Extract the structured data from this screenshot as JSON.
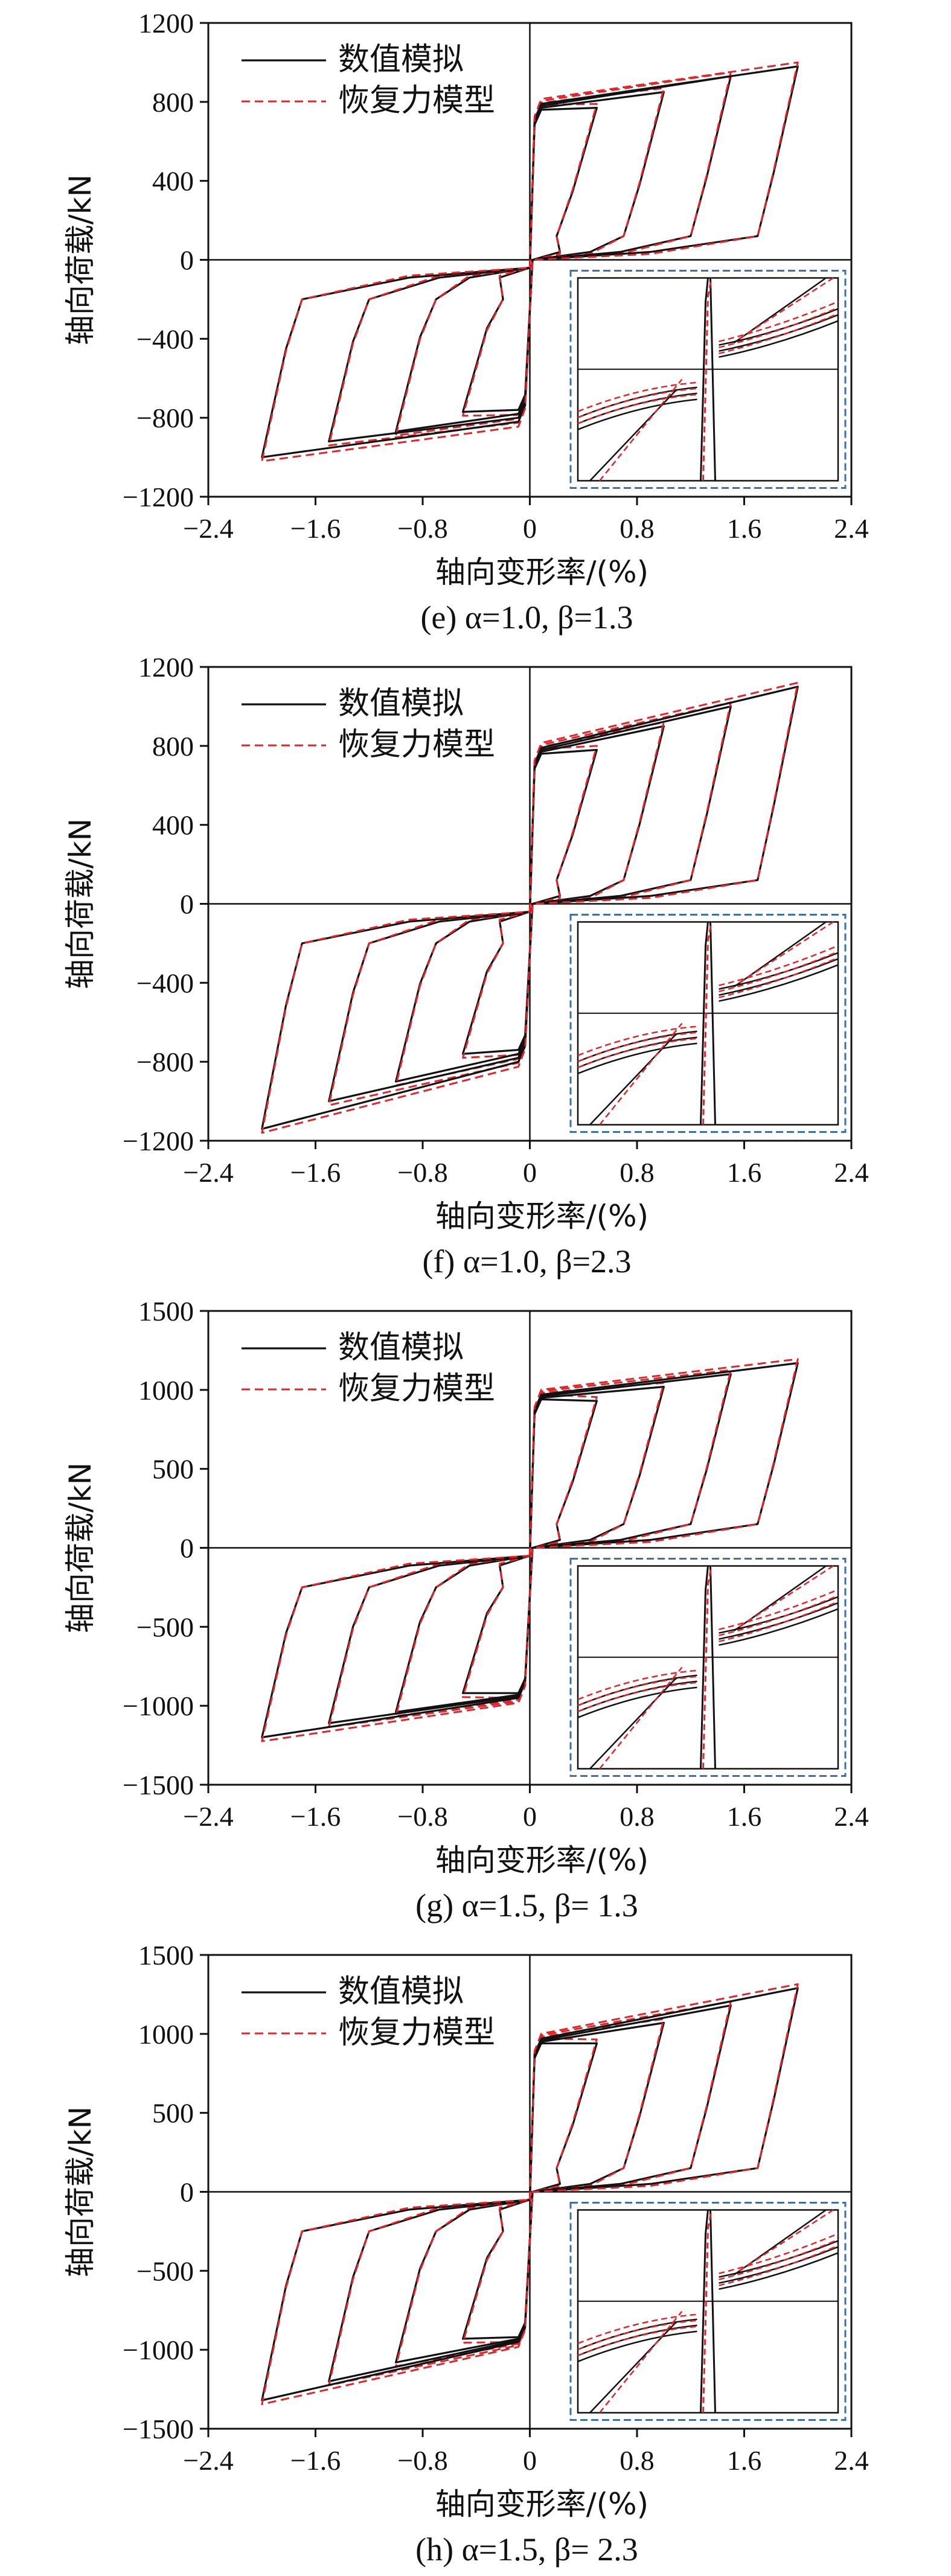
{
  "figure": {
    "panels": [
      {
        "caption": "(e) α=1.0, β=1.3",
        "legend": [
          "数值模拟",
          "恢复力模型"
        ],
        "colors": {
          "numerical": "#111111",
          "model": "#e0252b",
          "inset_border": "#3d6fa8"
        },
        "inset": true
      },
      {
        "caption": "(f) α=1.0, β=2.3",
        "legend": [
          "数值模拟",
          "恢复力模型"
        ],
        "colors": {
          "numerical": "#111111",
          "model": "#e0252b",
          "inset_border": "#3d6fa8"
        },
        "inset": true
      },
      {
        "caption": "(g) α=1.5, β= 1.3",
        "legend": [
          "数值模拟",
          "恢复力模型"
        ],
        "colors": {
          "numerical": "#111111",
          "model": "#e0252b",
          "inset_border": "#3d6fa8"
        },
        "inset": true
      },
      {
        "caption": "(h) α=1.5, β= 2.3",
        "legend": [
          "数值模拟",
          "恢复力模型"
        ],
        "colors": {
          "numerical": "#111111",
          "model": "#e0252b",
          "inset_border": "#3d6fa8"
        },
        "inset": true
      }
    ]
  },
  "chart_data": [
    {
      "type": "line",
      "xlabel": "轴向变形率/(%)",
      "ylabel": "轴向荷载/kN",
      "xlim": [
        -2.4,
        2.4
      ],
      "ylim": [
        -1200,
        1200
      ],
      "xticks": [
        "-2.4",
        "-1.6",
        "-0.8",
        "0",
        "0.8",
        "1.6",
        "2.4"
      ],
      "yticks": [
        "1200",
        "800",
        "400",
        "0",
        "-400",
        "-800",
        "-1200"
      ],
      "loops": [
        {
          "amp": 0.5,
          "top": 760,
          "bot": -760,
          "topEnd": 770,
          "botEnd": -770
        },
        {
          "amp": 1.0,
          "top": 770,
          "bot": -780,
          "topEnd": 850,
          "botEnd": -870
        },
        {
          "amp": 1.5,
          "top": 780,
          "bot": -800,
          "topEnd": 930,
          "botEnd": -920
        },
        {
          "amp": 2.0,
          "top": 790,
          "bot": -820,
          "topEnd": 980,
          "botEnd": -1000
        }
      ],
      "series": [
        {
          "name": "数值模拟",
          "style": "solid"
        },
        {
          "name": "恢复力模型",
          "style": "dashed"
        }
      ]
    },
    {
      "type": "line",
      "xlabel": "轴向变形率/(%)",
      "ylabel": "轴向荷载/kN",
      "xlim": [
        -2.4,
        2.4
      ],
      "ylim": [
        -1200,
        1200
      ],
      "xticks": [
        "-2.4",
        "-1.6",
        "-0.8",
        "0",
        "0.8",
        "1.6",
        "2.4"
      ],
      "yticks": [
        "1200",
        "800",
        "400",
        "0",
        "-400",
        "-800",
        "-1200"
      ],
      "loops": [
        {
          "amp": 0.5,
          "top": 760,
          "bot": -740,
          "topEnd": 780,
          "botEnd": -760
        },
        {
          "amp": 1.0,
          "top": 770,
          "bot": -760,
          "topEnd": 900,
          "botEnd": -900
        },
        {
          "amp": 1.5,
          "top": 780,
          "bot": -780,
          "topEnd": 1000,
          "botEnd": -1000
        },
        {
          "amp": 2.0,
          "top": 790,
          "bot": -800,
          "topEnd": 1100,
          "botEnd": -1140
        }
      ],
      "series": [
        {
          "name": "数值模拟",
          "style": "solid"
        },
        {
          "name": "恢复力模型",
          "style": "dashed"
        }
      ]
    },
    {
      "type": "line",
      "xlabel": "轴向变形率/(%)",
      "ylabel": "轴向荷载/kN",
      "xlim": [
        -2.4,
        2.4
      ],
      "ylim": [
        -1500,
        1500
      ],
      "xticks": [
        "-2.4",
        "-1.6",
        "-0.8",
        "0",
        "0.8",
        "1.6",
        "2.4"
      ],
      "yticks": [
        "1500",
        "1000",
        "500",
        "0",
        "-500",
        "-1000",
        "-1500"
      ],
      "loops": [
        {
          "amp": 0.5,
          "top": 940,
          "bot": -920,
          "topEnd": 930,
          "botEnd": -920
        },
        {
          "amp": 1.0,
          "top": 950,
          "bot": -930,
          "topEnd": 1020,
          "botEnd": -1040
        },
        {
          "amp": 1.5,
          "top": 960,
          "bot": -940,
          "topEnd": 1100,
          "botEnd": -1110
        },
        {
          "amp": 2.0,
          "top": 970,
          "bot": -950,
          "topEnd": 1170,
          "botEnd": -1200
        }
      ],
      "series": [
        {
          "name": "数值模拟",
          "style": "solid"
        },
        {
          "name": "恢复力模型",
          "style": "dashed"
        }
      ]
    },
    {
      "type": "line",
      "xlabel": "轴向变形率/(%)",
      "ylabel": "轴向荷载/kN",
      "xlim": [
        -2.4,
        2.4
      ],
      "ylim": [
        -1500,
        1500
      ],
      "xticks": [
        "-2.4",
        "-1.6",
        "-0.8",
        "0",
        "0.8",
        "1.6",
        "2.4"
      ],
      "yticks": [
        "1500",
        "1000",
        "500",
        "0",
        "-500",
        "-1000",
        "-1500"
      ],
      "loops": [
        {
          "amp": 0.5,
          "top": 940,
          "bot": -920,
          "topEnd": 940,
          "botEnd": -930
        },
        {
          "amp": 1.0,
          "top": 950,
          "bot": -930,
          "topEnd": 1070,
          "botEnd": -1080
        },
        {
          "amp": 1.5,
          "top": 960,
          "bot": -940,
          "topEnd": 1180,
          "botEnd": -1200
        },
        {
          "amp": 2.0,
          "top": 970,
          "bot": -950,
          "topEnd": 1290,
          "botEnd": -1320
        }
      ],
      "series": [
        {
          "name": "数值模拟",
          "style": "solid"
        },
        {
          "name": "恢复力模型",
          "style": "dashed"
        }
      ]
    }
  ]
}
